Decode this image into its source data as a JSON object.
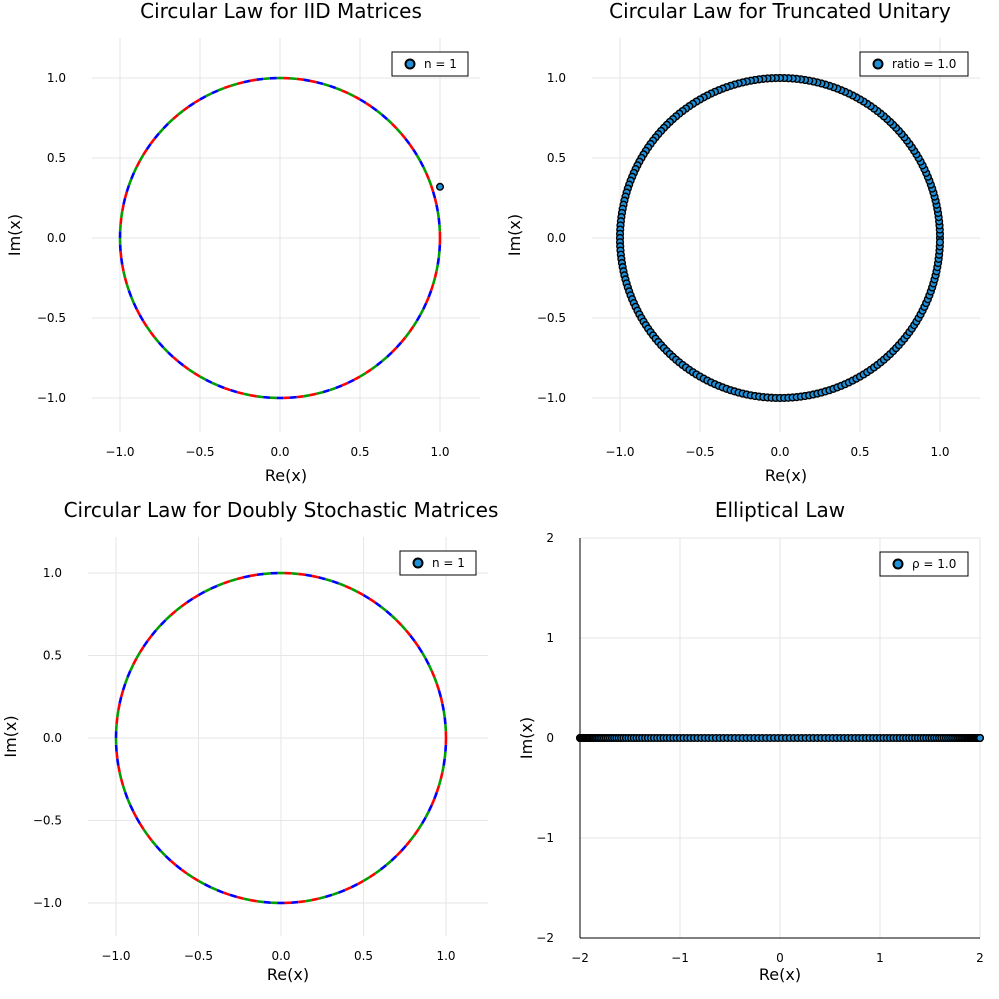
{
  "chart_data": [
    {
      "type": "scatter",
      "title": "Circular Law for IID Matrices",
      "xlabel": "Re(x)",
      "ylabel": "Im(x)",
      "xlim": [
        -1.25,
        1.25
      ],
      "ylim": [
        -1.25,
        1.25
      ],
      "xticks": [
        -1.0,
        -0.5,
        0.0,
        0.5,
        1.0
      ],
      "xtick_labels": [
        "−1.0",
        "−0.5",
        "0.0",
        "0.5",
        "1.0"
      ],
      "yticks": [
        -1.0,
        -0.5,
        0.0,
        0.5,
        1.0
      ],
      "ytick_labels": [
        "−1.0",
        "−0.5",
        "0.0",
        "0.5",
        "1.0"
      ],
      "grid": true,
      "legend": {
        "label": "n = 1",
        "position": "top-right"
      },
      "marker_color": "#1f8fd8",
      "reference_curve": {
        "shape": "unit-circle",
        "colors": [
          "#ff0000",
          "#00a000",
          "#0000ff"
        ]
      },
      "series": [
        {
          "name": "n = 1",
          "points": [
            [
              1.0,
              0.32
            ]
          ]
        }
      ]
    },
    {
      "type": "scatter",
      "title": "Circular Law for Truncated Unitary",
      "xlabel": "Re(x)",
      "ylabel": "Im(x)",
      "xlim": [
        -1.25,
        1.25
      ],
      "ylim": [
        -1.25,
        1.25
      ],
      "xticks": [
        -1.0,
        -0.5,
        0.0,
        0.5,
        1.0
      ],
      "xtick_labels": [
        "−1.0",
        "−0.5",
        "0.0",
        "0.5",
        "1.0"
      ],
      "yticks": [
        -1.0,
        -0.5,
        0.0,
        0.5,
        1.0
      ],
      "ytick_labels": [
        "−1.0",
        "−0.5",
        "0.0",
        "0.5",
        "1.0"
      ],
      "grid": true,
      "legend": {
        "label": "ratio = 1.0",
        "position": "top-right"
      },
      "marker_color": "#1f8fd8",
      "reference_curve": {
        "shape": "unit-circle",
        "colors": [
          "#ff0000",
          "#00a000",
          "#0000ff"
        ]
      },
      "series": [
        {
          "name": "ratio = 1.0",
          "distribution": "dense ring of points on the unit circle",
          "radius": 1.0,
          "count": 240
        }
      ]
    },
    {
      "type": "scatter",
      "title": "Circular Law for Doubly Stochastic Matrices",
      "xlabel": "Re(x)",
      "ylabel": "Im(x)",
      "xlim": [
        -1.25,
        1.25
      ],
      "ylim": [
        -1.25,
        1.25
      ],
      "xticks": [
        -1.0,
        -0.5,
        0.0,
        0.5,
        1.0
      ],
      "xtick_labels": [
        "−1.0",
        "−0.5",
        "0.0",
        "0.5",
        "1.0"
      ],
      "yticks": [
        -1.0,
        -0.5,
        0.0,
        0.5,
        1.0
      ],
      "ytick_labels": [
        "−1.0",
        "−0.5",
        "0.0",
        "0.5",
        "1.0"
      ],
      "grid": true,
      "legend": {
        "label": "n = 1",
        "position": "top-right"
      },
      "marker_color": "#1f8fd8",
      "reference_curve": {
        "shape": "unit-circle",
        "colors": [
          "#ff0000",
          "#00a000",
          "#0000ff"
        ]
      },
      "series": [
        {
          "name": "n = 1",
          "points": []
        }
      ]
    },
    {
      "type": "scatter",
      "title": "Elliptical Law",
      "xlabel": "Re(x)",
      "ylabel": "Im(x)",
      "xlim": [
        -2,
        2
      ],
      "ylim": [
        -2,
        2
      ],
      "xticks": [
        -2,
        -1,
        0,
        1,
        2
      ],
      "xtick_labels": [
        "−2",
        "−1",
        "0",
        "1",
        "2"
      ],
      "yticks": [
        -2,
        -1,
        0,
        1,
        2
      ],
      "ytick_labels": [
        "−2",
        "−1",
        "0",
        "1",
        "2"
      ],
      "grid": true,
      "legend": {
        "label": "ρ = 1.0",
        "position": "top-right"
      },
      "marker_color": "#1f8fd8",
      "series": [
        {
          "name": "ρ = 1.0",
          "distribution": "points along the real axis, y = 0",
          "x_range": [
            -2,
            2
          ],
          "y": 0,
          "count": 160
        }
      ]
    }
  ]
}
